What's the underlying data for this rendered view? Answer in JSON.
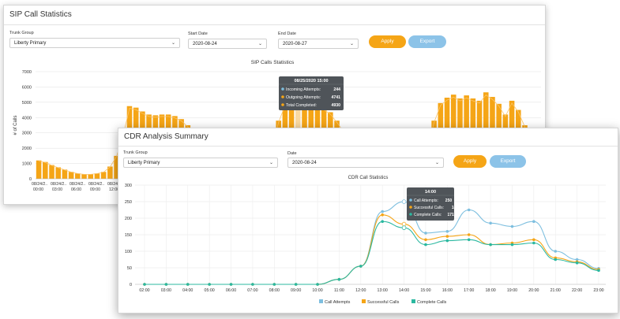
{
  "sip": {
    "title": "SIP Call Statistics",
    "trunk_label": "Trunk Group",
    "trunk_value": "Liberty Primary",
    "start_label": "Start Date",
    "start_value": "2020-08-24",
    "end_label": "End Date",
    "end_value": "2020-08-27",
    "apply": "Apply",
    "export": "Export",
    "chevron": "chevron-down-icon"
  },
  "cdr": {
    "title": "CDR Analysis Summary",
    "trunk_label": "Trunk Group",
    "trunk_value": "Liberty Primary",
    "date_label": "Date",
    "date_value": "2020-08-24",
    "apply": "Apply",
    "export": "Export"
  },
  "colors": {
    "orange": "#f5a516",
    "blue": "#7ebfdf",
    "teal": "#2bb8a0",
    "dark_tooltip": "#555a60"
  },
  "chart_data": [
    {
      "type": "bar",
      "title": "SIP Calls Statistics",
      "ylabel": "# of Calls",
      "ylim": [
        0,
        7000
      ],
      "yticks": [
        0,
        1000,
        2000,
        3000,
        4000,
        5000,
        6000,
        7000
      ],
      "xtick_labels": [
        [
          "08/24/2..",
          "00:00"
        ],
        [
          "08/24/2..",
          "03:00"
        ],
        [
          "08/24/2..",
          "06:00"
        ],
        [
          "08/24/2..",
          "09:00"
        ],
        [
          "08/24/2..",
          "12:00"
        ]
      ],
      "values": [
        1200,
        1100,
        900,
        750,
        600,
        450,
        350,
        300,
        300,
        350,
        450,
        800,
        1500,
        2900,
        4750,
        4650,
        4400,
        4200,
        4150,
        4200,
        4200,
        4100,
        3900,
        3500,
        2800,
        2000,
        1400,
        1000,
        800,
        650,
        500,
        400,
        350,
        380,
        500,
        900,
        2000,
        3800,
        4950,
        5300,
        5400,
        5150,
        5000,
        4950,
        4650,
        4350,
        3800,
        3200,
        2500,
        1800,
        1300,
        950,
        800,
        650,
        500,
        400,
        350,
        380,
        500,
        900,
        2000,
        3800,
        4950,
        5300,
        5500,
        5250,
        5450,
        5250,
        5100,
        5650,
        5350,
        4900,
        4200,
        5100,
        4500,
        3500,
        1500,
        1100
      ],
      "highlight_index": 40,
      "tooltip": {
        "title": "08/25/2020 15:00",
        "rows": [
          {
            "label": "Incoming Attempts:",
            "value": "244",
            "color": "#7ebfdf"
          },
          {
            "label": "Outgoing Attempts:",
            "value": "4741",
            "color": "#f5a516"
          },
          {
            "label": "Total Completed:",
            "value": "4930",
            "color": "#f5a516"
          }
        ]
      }
    },
    {
      "type": "line",
      "title": "CDR Call Statistics",
      "ylim": [
        0,
        300
      ],
      "yticks": [
        0,
        50,
        100,
        150,
        200,
        250,
        300
      ],
      "categories": [
        "02:00",
        "03:00",
        "04:00",
        "05:00",
        "06:00",
        "07:00",
        "08:00",
        "09:00",
        "10:00",
        "11:00",
        "12:00",
        "13:00",
        "14:00",
        "15:00",
        "16:00",
        "17:00",
        "18:00",
        "19:00",
        "20:00",
        "21:00",
        "22:00",
        "23:00"
      ],
      "series": [
        {
          "name": "Call Attempts",
          "color": "#7ebfdf",
          "values": [
            0,
            0,
            0,
            0,
            0,
            0,
            0,
            0,
            0,
            15,
            55,
            220,
            250,
            155,
            160,
            225,
            185,
            175,
            190,
            100,
            75,
            48
          ]
        },
        {
          "name": "Successful Calls",
          "color": "#f5a516",
          "values": [
            0,
            0,
            0,
            0,
            0,
            0,
            0,
            0,
            0,
            15,
            55,
            210,
            182,
            135,
            145,
            150,
            120,
            125,
            135,
            80,
            68,
            45
          ]
        },
        {
          "name": "Complete Calls",
          "color": "#2bb8a0",
          "values": [
            0,
            0,
            0,
            0,
            0,
            0,
            0,
            0,
            0,
            15,
            55,
            190,
            171,
            120,
            132,
            135,
            120,
            120,
            125,
            75,
            65,
            42
          ]
        }
      ],
      "tooltip": {
        "title": "14:00",
        "rows": [
          {
            "label": "Call Attempts:",
            "value": "250",
            "color": "#7ebfdf"
          },
          {
            "label": "Successful Calls:",
            "value": "182",
            "color": "#f5a516"
          },
          {
            "label": "Complete Calls:",
            "value": "171",
            "color": "#2bb8a0"
          }
        ]
      }
    }
  ]
}
